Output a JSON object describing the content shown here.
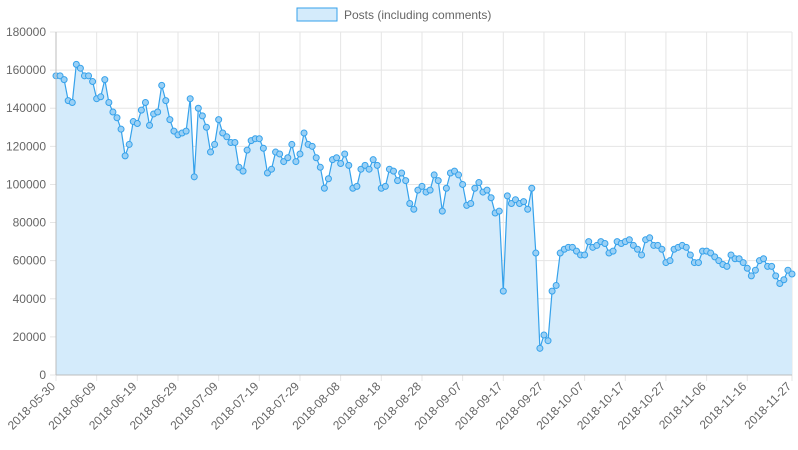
{
  "chart_data": {
    "type": "area",
    "legend": {
      "label": "Posts (including comments)",
      "placement": "top-center"
    },
    "colors": {
      "line": "#36a2eb",
      "fill": "#d4ebfb",
      "point": "#9ad0f5"
    },
    "ylim": [
      0,
      180000
    ],
    "yticks": [
      0,
      20000,
      40000,
      60000,
      80000,
      100000,
      120000,
      140000,
      160000,
      180000
    ],
    "ytick_labels": [
      "0",
      "20000",
      "40000",
      "60000",
      "80000",
      "100000",
      "120000",
      "140000",
      "160000",
      "180000"
    ],
    "x_start": "2018-05-30",
    "xlim": [
      "2018-05-30",
      "2018-11-27"
    ],
    "xtick_labels": [
      "2018-05-30",
      "2018-06-09",
      "2018-06-19",
      "2018-06-29",
      "2018-07-09",
      "2018-07-19",
      "2018-07-29",
      "2018-08-08",
      "2018-08-18",
      "2018-08-28",
      "2018-09-07",
      "2018-09-17",
      "2018-09-27",
      "2018-10-07",
      "2018-10-17",
      "2018-10-27",
      "2018-11-06",
      "2018-11-16",
      "2018-11-27"
    ],
    "grid": true,
    "logo": "steem-logo",
    "series": [
      {
        "name": "Posts (including comments)",
        "values": [
          157000,
          157000,
          155000,
          144000,
          143000,
          163000,
          161000,
          157000,
          157000,
          154000,
          145000,
          146000,
          155000,
          143000,
          138000,
          135000,
          129000,
          115000,
          121000,
          133000,
          132000,
          139000,
          143000,
          131000,
          137000,
          138000,
          152000,
          144000,
          134000,
          128000,
          126000,
          127000,
          128000,
          145000,
          104000,
          140000,
          136000,
          130000,
          117000,
          121000,
          134000,
          127000,
          125000,
          122000,
          122000,
          109000,
          107000,
          118000,
          123000,
          124000,
          124000,
          119000,
          106000,
          108000,
          117000,
          116000,
          112000,
          114000,
          121000,
          112000,
          116000,
          127000,
          121000,
          120000,
          114000,
          109000,
          98000,
          103000,
          113000,
          114000,
          111000,
          116000,
          110000,
          98000,
          99000,
          108000,
          110000,
          108000,
          113000,
          110000,
          98000,
          99000,
          108000,
          107000,
          102000,
          106000,
          102000,
          90000,
          87000,
          97000,
          99000,
          96000,
          97000,
          105000,
          102000,
          86000,
          98000,
          106000,
          107000,
          105000,
          100000,
          89000,
          90000,
          98000,
          101000,
          96000,
          97000,
          93000,
          85000,
          86000,
          44000,
          94000,
          90000,
          92000,
          90000,
          91000,
          87000,
          98000,
          64000,
          14000,
          21000,
          18000,
          44000,
          47000,
          64000,
          66000,
          67000,
          67000,
          65000,
          63000,
          63000,
          70000,
          67000,
          68000,
          70000,
          69000,
          64000,
          65000,
          70000,
          69000,
          70000,
          71000,
          68000,
          66000,
          63000,
          71000,
          72000,
          68000,
          68000,
          66000,
          59000,
          60000,
          66000,
          67000,
          68000,
          67000,
          63000,
          59000,
          59000,
          65000,
          65000,
          64000,
          62000,
          60000,
          58000,
          57000,
          63000,
          61000,
          61000,
          59000,
          56000,
          52000,
          55000,
          60000,
          61000,
          57000,
          57000,
          52000,
          48000,
          50000,
          55000,
          53000
        ]
      }
    ]
  }
}
